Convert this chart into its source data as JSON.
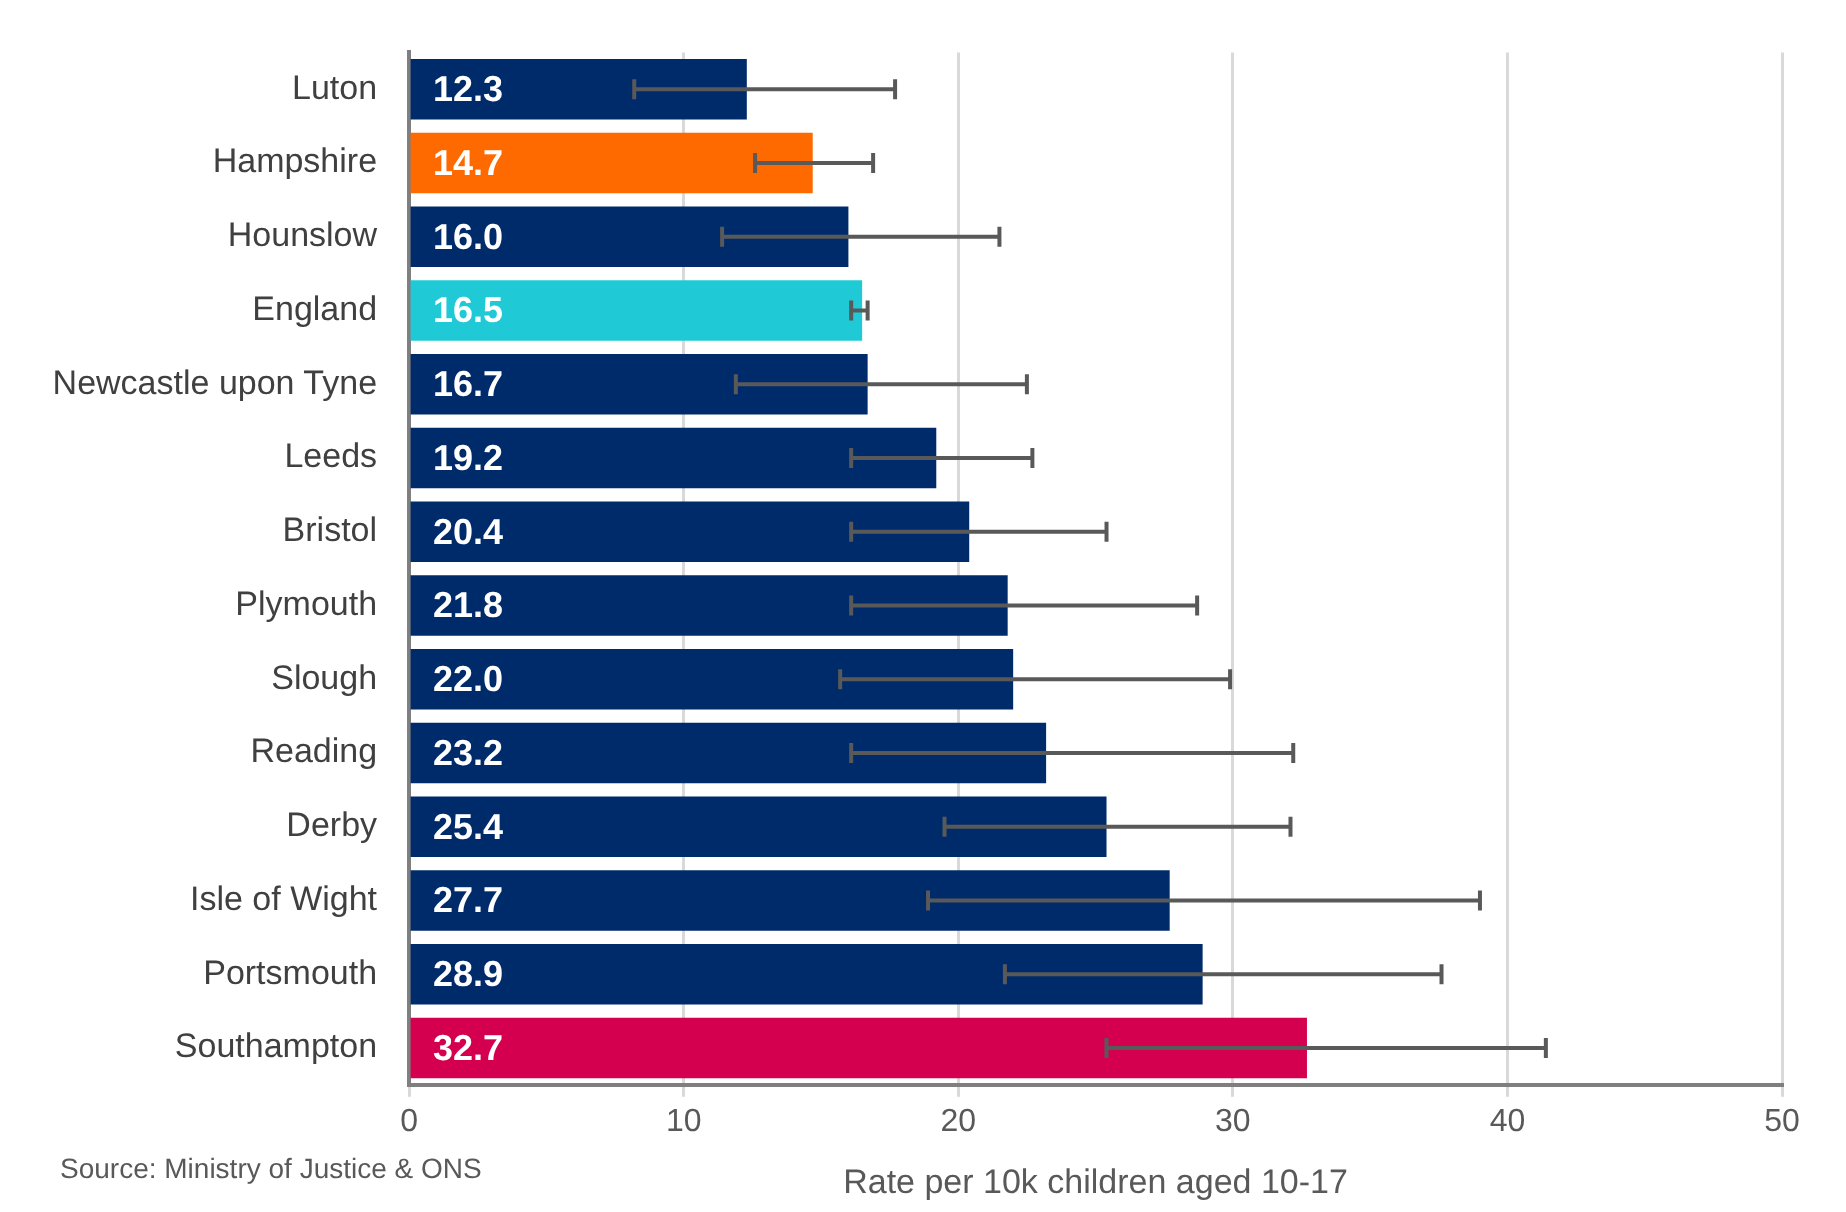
{
  "chart_data": {
    "type": "bar",
    "orientation": "horizontal",
    "categories": [
      "Luton",
      "Hampshire",
      "Hounslow",
      "England",
      "Newcastle upon Tyne",
      "Leeds",
      "Bristol",
      "Plymouth",
      "Slough",
      "Reading",
      "Derby",
      "Isle of Wight",
      "Portsmouth",
      "Southampton"
    ],
    "values": [
      12.3,
      14.7,
      16.0,
      16.5,
      16.7,
      19.2,
      20.4,
      21.8,
      22.0,
      23.2,
      25.4,
      27.7,
      28.9,
      32.7
    ],
    "colors": [
      "#002b6b",
      "#ff6a00",
      "#002b6b",
      "#1fcad6",
      "#002b6b",
      "#002b6b",
      "#002b6b",
      "#002b6b",
      "#002b6b",
      "#002b6b",
      "#002b6b",
      "#002b6b",
      "#002b6b",
      "#d4004f"
    ],
    "errors": [
      [
        8.2,
        17.7
      ],
      [
        12.6,
        16.9
      ],
      [
        11.4,
        21.5
      ],
      [
        16.1,
        16.7
      ],
      [
        11.9,
        22.5
      ],
      [
        16.1,
        22.7
      ],
      [
        16.1,
        25.4
      ],
      [
        16.1,
        28.7
      ],
      [
        15.7,
        29.9
      ],
      [
        16.1,
        32.2
      ],
      [
        19.5,
        32.1
      ],
      [
        18.9,
        39.0
      ],
      [
        21.7,
        37.6
      ],
      [
        25.4,
        41.4
      ]
    ],
    "value_labels": [
      "12.3",
      "14.7",
      "16.0",
      "16.5",
      "16.7",
      "19.2",
      "20.4",
      "21.8",
      "22.0",
      "23.2",
      "25.4",
      "27.7",
      "28.9",
      "32.7"
    ],
    "xlim": [
      0,
      50
    ],
    "xticks": [
      0,
      10,
      20,
      30,
      40,
      50
    ],
    "xlabel": "Rate per 10k children aged 10-17",
    "grid": "x",
    "legend": false,
    "annotations": [
      "Source: Ministry of Justice & ONS"
    ]
  }
}
